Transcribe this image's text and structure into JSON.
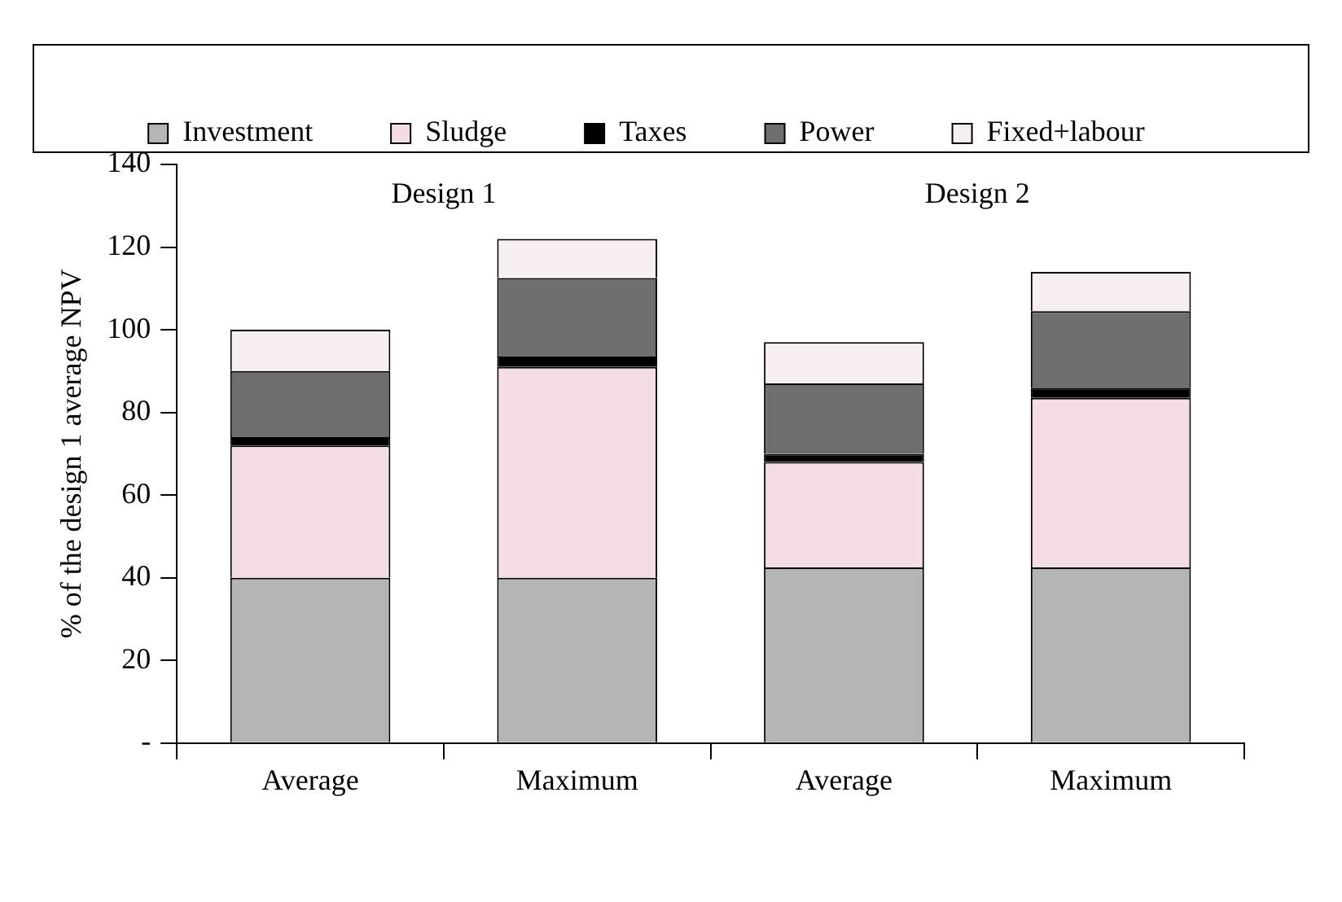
{
  "chart_data": {
    "type": "bar",
    "stacked": true,
    "ylabel": "% of the design 1 average NPV",
    "categories": [
      "Average",
      "Maximum",
      "Average",
      "Maximum"
    ],
    "series": [
      {
        "name": "Investment",
        "color": "#b4b4b4",
        "values": [
          40,
          40,
          42.5,
          42.5
        ]
      },
      {
        "name": "Sludge",
        "color": "#f4dce6",
        "values": [
          32,
          51,
          25.5,
          41
        ]
      },
      {
        "name": "Taxes",
        "color": "#000000",
        "values": [
          2,
          2.5,
          2,
          2.5
        ]
      },
      {
        "name": "Power",
        "color": "#6e6e6e",
        "values": [
          16,
          19,
          17,
          18.5
        ]
      },
      {
        "name": "Fixed+labour",
        "color": "#f7eef3",
        "values": [
          10,
          9.5,
          10,
          9.5
        ]
      }
    ],
    "ylim": [
      0,
      140
    ],
    "yticks": [
      {
        "value": 0,
        "label": "-"
      },
      20,
      40,
      60,
      80,
      100,
      120,
      140
    ],
    "annotations": [
      "Design 1",
      "Design 2"
    ],
    "grid": false,
    "legend": "top"
  }
}
